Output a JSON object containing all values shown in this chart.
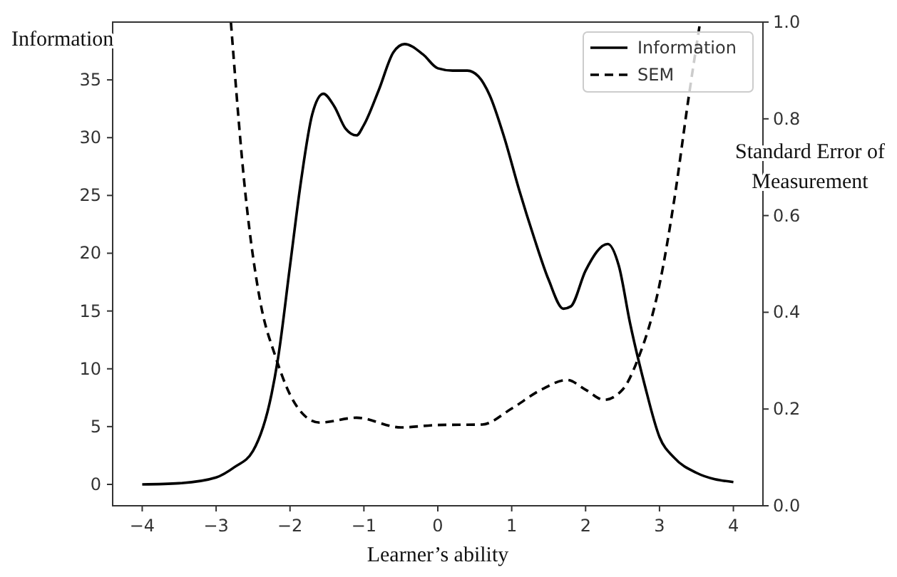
{
  "chart_data": {
    "type": "line",
    "xlabel": "Learner’s ability",
    "ylabel": "Information",
    "y2label": "Standard Error of Measurement",
    "xlim": [
      -4.4,
      4.4
    ],
    "xticks": [
      {
        "value": -4,
        "label": "−4"
      },
      {
        "value": -3,
        "label": "−3"
      },
      {
        "value": -2,
        "label": "−2"
      },
      {
        "value": -1,
        "label": "−1"
      },
      0,
      1,
      2,
      3,
      4
    ],
    "ylim": [
      -1.85,
      40
    ],
    "yticks": [
      0,
      5,
      10,
      15,
      20,
      25,
      30,
      35
    ],
    "y2lim": [
      0,
      1
    ],
    "y2ticks": [
      {
        "value": 0,
        "label": "0.0"
      },
      {
        "value": 0.2,
        "label": "0.2"
      },
      {
        "value": 0.4,
        "label": "0.4"
      },
      {
        "value": 0.6,
        "label": "0.6"
      },
      {
        "value": 0.8,
        "label": "0.8"
      },
      {
        "value": 1,
        "label": "1.0"
      }
    ],
    "grid": false,
    "legend": "top right",
    "series": [
      {
        "name": "Information",
        "color": "#000000",
        "line_style": "solid",
        "x": [
          -4,
          -3.5,
          -3,
          -2.75,
          -2.5,
          -2.25,
          -2.16,
          -2,
          -1.85,
          -1.7,
          -1.55,
          -1.4,
          -1.25,
          -1.1,
          -1,
          -0.8,
          -0.6,
          -0.45,
          -0.2,
          0,
          0.2,
          0.4,
          0.55,
          0.7,
          0.9,
          1.1,
          1.3,
          1.5,
          1.7,
          1.8,
          2,
          2.3,
          2.45,
          2.6,
          2.8,
          3,
          3.2,
          3.5,
          4
        ],
        "values": [
          0,
          0.1,
          0.6,
          1.5,
          2.9,
          7.8,
          11,
          18.9,
          26.3,
          32,
          33.8,
          32.7,
          30.8,
          30.2,
          31.1,
          34.1,
          37.4,
          38.1,
          37.2,
          36,
          35.8,
          35.8,
          35.3,
          33.7,
          30,
          25.5,
          21.4,
          17.7,
          15.2,
          15.4,
          18.5,
          20.8,
          18.9,
          14,
          8.6,
          4.1,
          2.3,
          1,
          0.2
        ]
      },
      {
        "name": "SEM",
        "color": "#000000",
        "line_style": "dashed",
        "axis": "y2",
        "x": [
          -2.8,
          -2.6,
          -2.4,
          -2.2,
          -2,
          -1.8,
          -1.6,
          -1.1,
          -0.5,
          0,
          0.6,
          1,
          1.4,
          1.75,
          2,
          2.25,
          2.5,
          2.7,
          3,
          3.2,
          3.4,
          3.55
        ],
        "values": [
          1,
          0.64,
          0.42,
          0.31,
          0.23,
          0.186,
          0.172,
          0.182,
          0.162,
          0.167,
          0.168,
          0.201,
          0.24,
          0.26,
          0.24,
          0.219,
          0.24,
          0.3,
          0.457,
          0.633,
          0.85,
          1
        ]
      }
    ]
  }
}
